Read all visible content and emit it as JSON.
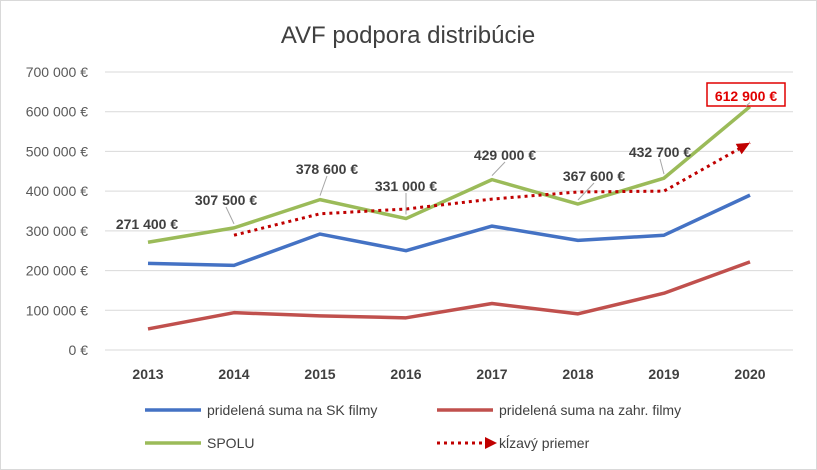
{
  "chart_data": {
    "type": "line",
    "title": "AVF podpora distribúcie",
    "categories": [
      "2013",
      "2014",
      "2015",
      "2016",
      "2017",
      "2018",
      "2019",
      "2020"
    ],
    "ylim": [
      0,
      700000
    ],
    "yticks": [
      0,
      100000,
      200000,
      300000,
      400000,
      500000,
      600000,
      700000
    ],
    "ytick_labels": [
      "0 €",
      "100 000 €",
      "200 000 €",
      "300 000 €",
      "400 000 €",
      "500 000 €",
      "600 000 €",
      "700 000 €"
    ],
    "grid": true,
    "legend_position": "bottom",
    "series": [
      {
        "name": "pridelená suma na SK filmy",
        "color": "#4472c4",
        "style": "solid",
        "values": [
          218000,
          213000,
          292000,
          250000,
          312000,
          276000,
          289000,
          390000
        ]
      },
      {
        "name": "pridelená suma na zahr. filmy",
        "color": "#c0504d",
        "style": "solid",
        "values": [
          53000,
          94000,
          86000,
          81000,
          117000,
          91000,
          143000,
          222000
        ]
      },
      {
        "name": "SPOLU",
        "color": "#9bbb59",
        "style": "solid",
        "values": [
          271400,
          307500,
          378600,
          331000,
          429000,
          367600,
          432700,
          612900
        ]
      },
      {
        "name": "kĺzavý priemer",
        "color": "#c00000",
        "style": "dotted",
        "values": [
          null,
          289000,
          343000,
          355000,
          380000,
          398000,
          400000,
          522000
        ]
      }
    ],
    "data_labels": [
      {
        "text": "271 400 €",
        "category": "2013",
        "value": 271400
      },
      {
        "text": "307 500 €",
        "category": "2014",
        "value": 307500
      },
      {
        "text": "378 600 €",
        "category": "2015",
        "value": 378600
      },
      {
        "text": "331 000 €",
        "category": "2016",
        "value": 331000
      },
      {
        "text": "429 000 €",
        "category": "2017",
        "value": 429000
      },
      {
        "text": "367 600 €",
        "category": "2018",
        "value": 367600
      },
      {
        "text": "432 700 €",
        "category": "2019",
        "value": 432700
      },
      {
        "text": "612 900 €",
        "category": "2020",
        "value": 612900,
        "highlight": true,
        "highlight_color": "#e00000"
      }
    ]
  }
}
